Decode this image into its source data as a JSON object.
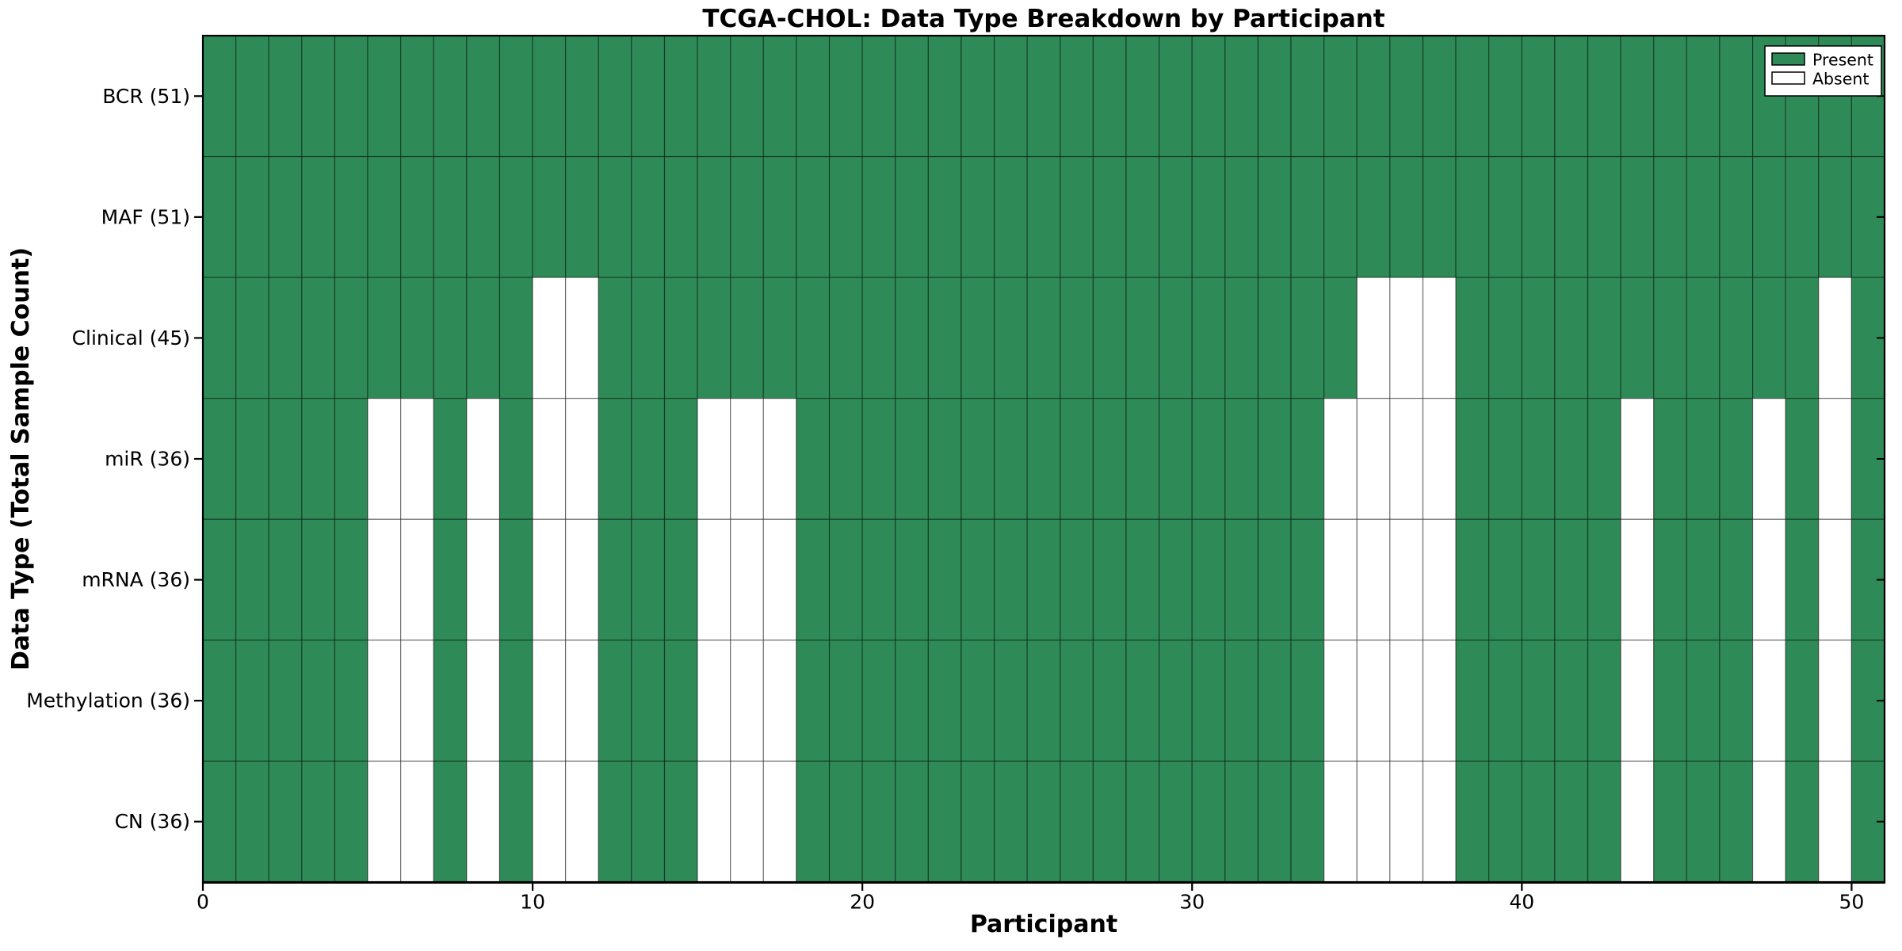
{
  "title": "TCGA-CHOL: Data Type Breakdown by Participant",
  "chart_data": {
    "type": "heatmap",
    "title": "TCGA-CHOL: Data Type Breakdown by Participant",
    "xlabel": "Participant",
    "ylabel": "Data Type (Total Sample Count)",
    "x_ticks": [
      0,
      10,
      20,
      30,
      40,
      50
    ],
    "xlim": [
      0,
      51
    ],
    "n_participants": 51,
    "grid": true,
    "legend_position": "upper right",
    "legend": {
      "entries": [
        {
          "label": "Present",
          "color": "#2e8b57"
        },
        {
          "label": "Absent",
          "color": "#ffffff"
        }
      ]
    },
    "colors": {
      "present": "#2e8b57",
      "absent": "#ffffff",
      "cell_edge": "rgba(0,0,0,0.45)",
      "axis": "#000000",
      "background": "#ffffff"
    },
    "rows": [
      {
        "label": "BCR (51)",
        "data_type": "BCR",
        "present_count": 51,
        "absent_participants": []
      },
      {
        "label": "MAF (51)",
        "data_type": "MAF",
        "present_count": 51,
        "absent_participants": []
      },
      {
        "label": "Clinical (45)",
        "data_type": "Clinical",
        "present_count": 45,
        "absent_participants": [
          10,
          11,
          35,
          36,
          37,
          49
        ]
      },
      {
        "label": "miR (36)",
        "data_type": "miR",
        "present_count": 36,
        "absent_participants": [
          5,
          6,
          8,
          10,
          11,
          15,
          16,
          17,
          34,
          35,
          36,
          37,
          43,
          47,
          49
        ]
      },
      {
        "label": "mRNA (36)",
        "data_type": "mRNA",
        "present_count": 36,
        "absent_participants": [
          5,
          6,
          8,
          10,
          11,
          15,
          16,
          17,
          34,
          35,
          36,
          37,
          43,
          47,
          49
        ]
      },
      {
        "label": "Methylation (36)",
        "data_type": "Methylation",
        "present_count": 36,
        "absent_participants": [
          5,
          6,
          8,
          10,
          11,
          15,
          16,
          17,
          34,
          35,
          36,
          37,
          43,
          47,
          49
        ]
      },
      {
        "label": "CN (36)",
        "data_type": "CN",
        "present_count": 36,
        "absent_participants": [
          5,
          6,
          8,
          10,
          11,
          15,
          16,
          17,
          34,
          35,
          36,
          37,
          43,
          47,
          49
        ]
      }
    ]
  }
}
